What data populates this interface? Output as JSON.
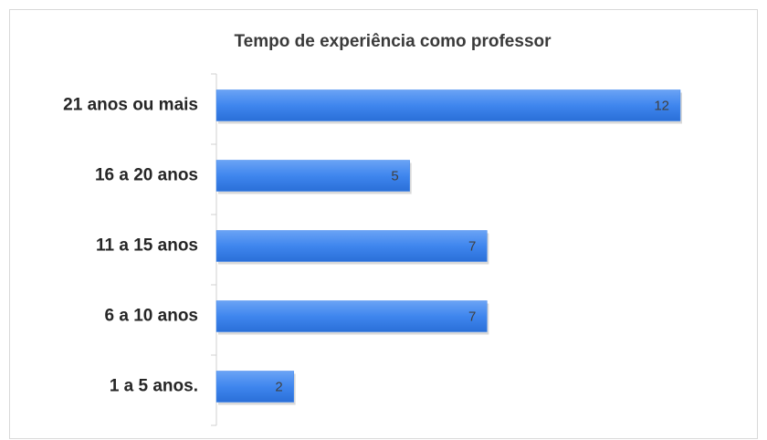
{
  "chart_data": {
    "type": "bar",
    "orientation": "horizontal",
    "title": "Tempo de experiência como professor",
    "categories": [
      "21 anos ou mais",
      "16 a 20 anos",
      "11 a 15 anos",
      "6 a 10 anos",
      "1 a 5 anos."
    ],
    "values": [
      12,
      5,
      7,
      7,
      2
    ],
    "color": "#3f86ee"
  }
}
